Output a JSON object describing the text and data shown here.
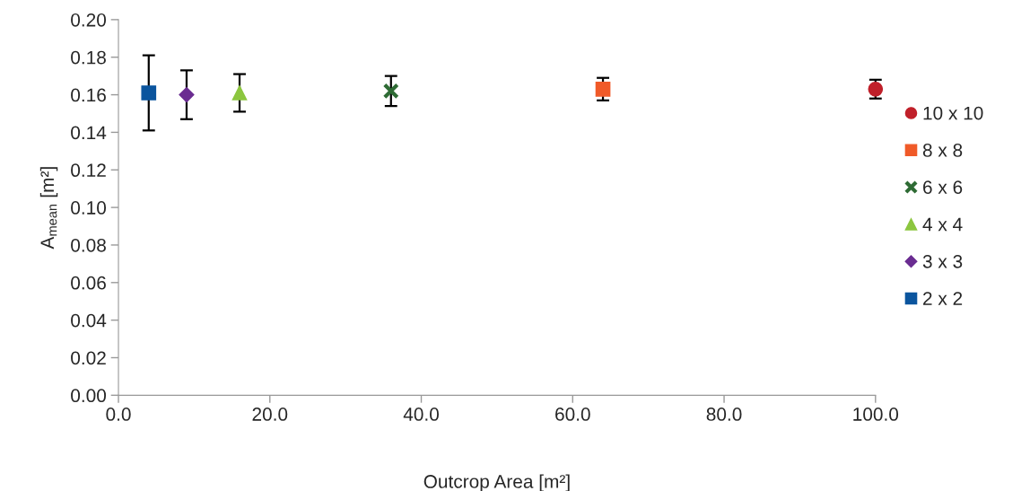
{
  "chart_data": {
    "type": "scatter",
    "xlabel": "Outcrop Area [m²]",
    "ylabel": "A$_{mean}$ [m²]",
    "xlim": [
      0,
      100
    ],
    "xticks": [
      {
        "value": 0,
        "label": "0.0"
      },
      {
        "value": 20,
        "label": "20.0"
      },
      {
        "value": 40,
        "label": "40.0"
      },
      {
        "value": 60,
        "label": "60.0"
      },
      {
        "value": 80,
        "label": "80.0"
      },
      {
        "value": 100,
        "label": "100.0"
      }
    ],
    "ylim": [
      0,
      0.2
    ],
    "yticks": [
      {
        "value": 0,
        "label": "0.00"
      },
      {
        "value": 0.02,
        "label": "0.02"
      },
      {
        "value": 0.04,
        "label": "0.04"
      },
      {
        "value": 0.06,
        "label": "0.06"
      },
      {
        "value": 0.08,
        "label": "0.08"
      },
      {
        "value": 0.1,
        "label": "0.10"
      },
      {
        "value": 0.12,
        "label": "0.12"
      },
      {
        "value": 0.14,
        "label": "0.14"
      },
      {
        "value": 0.16,
        "label": "0.16"
      },
      {
        "value": 0.18,
        "label": "0.18"
      },
      {
        "value": 0.2,
        "label": "0.20"
      }
    ],
    "grid": false,
    "legend": "right",
    "series": [
      {
        "name": "10 x 10",
        "color": "#c0202a",
        "marker": "circle",
        "x": [
          100
        ],
        "values": [
          0.163
        ],
        "errors": [
          0.005
        ]
      },
      {
        "name": "8 x 8",
        "color": "#f05a28",
        "marker": "square",
        "x": [
          64
        ],
        "values": [
          0.163
        ],
        "errors": [
          0.006
        ]
      },
      {
        "name": "6 x 6",
        "color": "#2e6b34",
        "marker": "cross",
        "x": [
          36
        ],
        "values": [
          0.162
        ],
        "errors": [
          0.008
        ]
      },
      {
        "name": "4 x 4",
        "color": "#8cc63f",
        "marker": "triangle",
        "x": [
          16
        ],
        "values": [
          0.161
        ],
        "errors": [
          0.01
        ]
      },
      {
        "name": "3 x 3",
        "color": "#6a2c91",
        "marker": "diamond",
        "x": [
          9
        ],
        "values": [
          0.16
        ],
        "errors": [
          0.013
        ]
      },
      {
        "name": "2 x 2",
        "color": "#0b559e",
        "marker": "square",
        "x": [
          4
        ],
        "values": [
          0.161
        ],
        "errors": [
          0.02
        ]
      }
    ]
  }
}
